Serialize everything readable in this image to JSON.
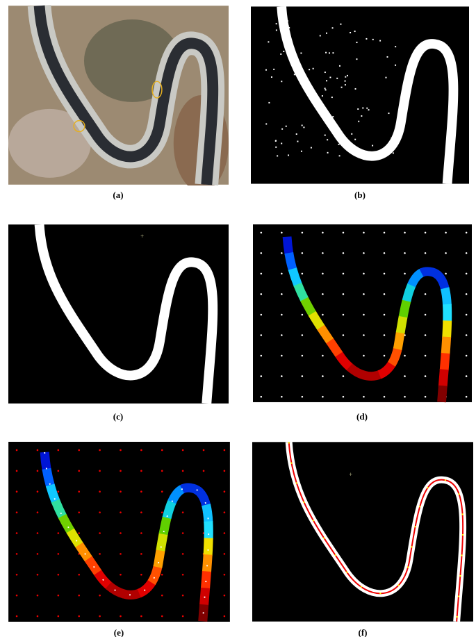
{
  "captions": [
    "(a)",
    "(b)",
    "(c)",
    "(d)",
    "(e)",
    "(f)"
  ]
}
